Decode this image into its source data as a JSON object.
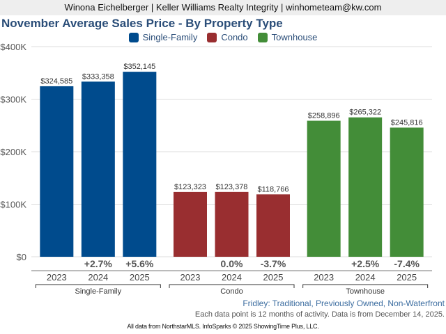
{
  "header": {
    "agent_line": "Winona Eichelberger | Keller Williams Realty Integrity | winhometeam@kw.com"
  },
  "chart_data": {
    "type": "bar",
    "title": "November Average Sales Price - By Property Type",
    "xlabel": "",
    "ylabel": "",
    "ylim": [
      0,
      400000
    ],
    "yticks": [
      0,
      100000,
      200000,
      300000,
      400000
    ],
    "ytick_labels": [
      "$0",
      "$100K",
      "$200K",
      "$300K",
      "$400K"
    ],
    "grid": true,
    "legend_position": "top-center",
    "series": [
      {
        "name": "Single-Family",
        "color": "#004b8d",
        "categories": [
          "2023",
          "2024",
          "2025"
        ],
        "values": [
          324585,
          333358,
          352145
        ],
        "value_labels": [
          "$324,585",
          "$333,358",
          "$352,145"
        ],
        "changes": [
          "",
          "+2.7%",
          "+5.6%"
        ]
      },
      {
        "name": "Condo",
        "color": "#992e30",
        "categories": [
          "2023",
          "2024",
          "2025"
        ],
        "values": [
          123323,
          123378,
          118766
        ],
        "value_labels": [
          "$123,323",
          "$123,378",
          "$118,766"
        ],
        "changes": [
          "",
          "0.0%",
          "-3.7%"
        ]
      },
      {
        "name": "Townhouse",
        "color": "#438d38",
        "categories": [
          "2023",
          "2024",
          "2025"
        ],
        "values": [
          258896,
          265322,
          245816
        ],
        "value_labels": [
          "$258,896",
          "$265,322",
          "$245,816"
        ],
        "changes": [
          "",
          "+2.5%",
          "-7.4%"
        ]
      }
    ]
  },
  "footer": {
    "subtitle": "Fridley: Traditional, Previously Owned, Non-Waterfront",
    "note": "Each data point is 12 months of activity. Data is from December 14, 2025.",
    "credit": "All data from NorthstarMLS. InfoSparks © 2025 ShowingTime Plus, LLC."
  }
}
